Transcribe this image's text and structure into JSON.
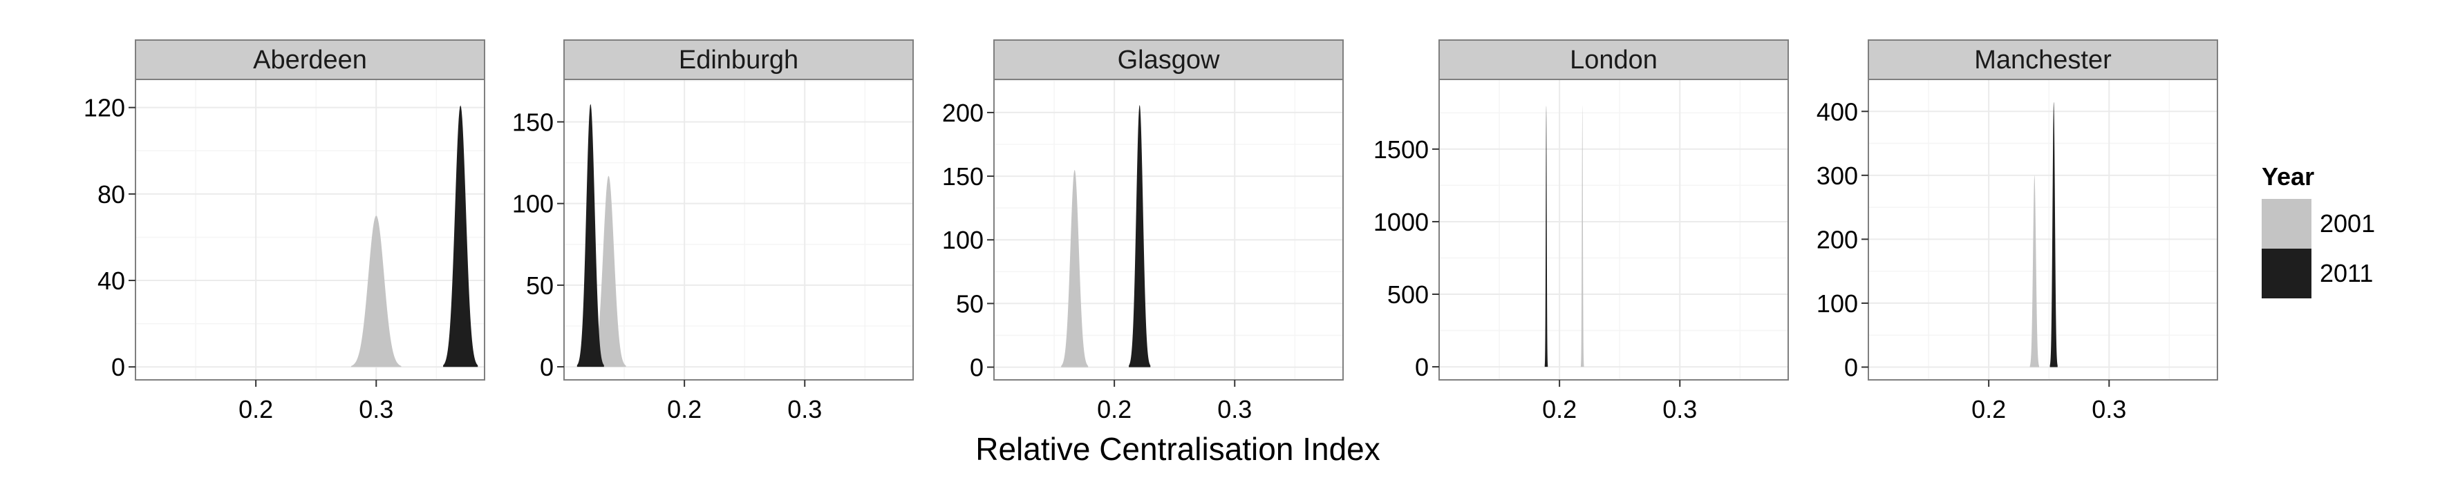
{
  "chart_data": {
    "type": "area",
    "chart_subtype": "density (faceted)",
    "xlabel": "Relative Centralisation Index",
    "ylabel": "",
    "grid": true,
    "legend": {
      "title": "Year",
      "placement": "right",
      "entries": [
        {
          "label": "2001",
          "color": "#c4c4c4"
        },
        {
          "label": "2011",
          "color": "#1e1e1e"
        }
      ]
    },
    "xlim": [
      0.1,
      0.39
    ],
    "x_ticks": [
      0.2,
      0.3
    ],
    "x_tick_labels": [
      "0.2",
      "0.3"
    ],
    "panels": [
      {
        "title": "Aberdeen",
        "ylim": [
          -6,
          133
        ],
        "y_ticks": [
          0,
          40,
          80,
          120
        ],
        "y_tick_labels": [
          "0",
          "40",
          "80",
          "120"
        ],
        "series": [
          {
            "name": "2001",
            "peak_x": 0.3,
            "peak_density": 70,
            "spread": 0.0065
          },
          {
            "name": "2011",
            "peak_x": 0.37,
            "peak_density": 121,
            "spread": 0.0045
          }
        ]
      },
      {
        "title": "Edinburgh",
        "ylim": [
          -8,
          176
        ],
        "y_ticks": [
          0,
          50,
          100,
          150
        ],
        "y_tick_labels": [
          "0",
          "50",
          "100",
          "150"
        ],
        "series": [
          {
            "name": "2001",
            "peak_x": 0.137,
            "peak_density": 117,
            "spread": 0.0045
          },
          {
            "name": "2011",
            "peak_x": 0.122,
            "peak_density": 161,
            "spread": 0.0035
          }
        ]
      },
      {
        "title": "Glasgow",
        "ylim": [
          -10,
          226
        ],
        "y_ticks": [
          0,
          50,
          100,
          150,
          200
        ],
        "y_tick_labels": [
          "0",
          "50",
          "100",
          "150",
          "200"
        ],
        "series": [
          {
            "name": "2001",
            "peak_x": 0.167,
            "peak_density": 155,
            "spread": 0.0035
          },
          {
            "name": "2011",
            "peak_x": 0.221,
            "peak_density": 206,
            "spread": 0.0028
          }
        ]
      },
      {
        "title": "London",
        "ylim": [
          -90,
          1980
        ],
        "y_ticks": [
          0,
          500,
          1000,
          1500
        ],
        "y_tick_labels": [
          "0",
          "500",
          "1000",
          "1500"
        ],
        "series": [
          {
            "name": "2001",
            "peak_x": 0.219,
            "peak_density": 1800,
            "spread": 0.0004
          },
          {
            "name": "2011",
            "peak_x": 0.189,
            "peak_density": 1800,
            "spread": 0.0004
          }
        ]
      },
      {
        "title": "Manchester",
        "ylim": [
          -20,
          450
        ],
        "y_ticks": [
          0,
          100,
          200,
          300,
          400
        ],
        "y_tick_labels": [
          "0",
          "100",
          "200",
          "300",
          "400"
        ],
        "series": [
          {
            "name": "2001",
            "peak_x": 0.238,
            "peak_density": 300,
            "spread": 0.0012
          },
          {
            "name": "2011",
            "peak_x": 0.254,
            "peak_density": 415,
            "spread": 0.001
          }
        ]
      }
    ]
  }
}
